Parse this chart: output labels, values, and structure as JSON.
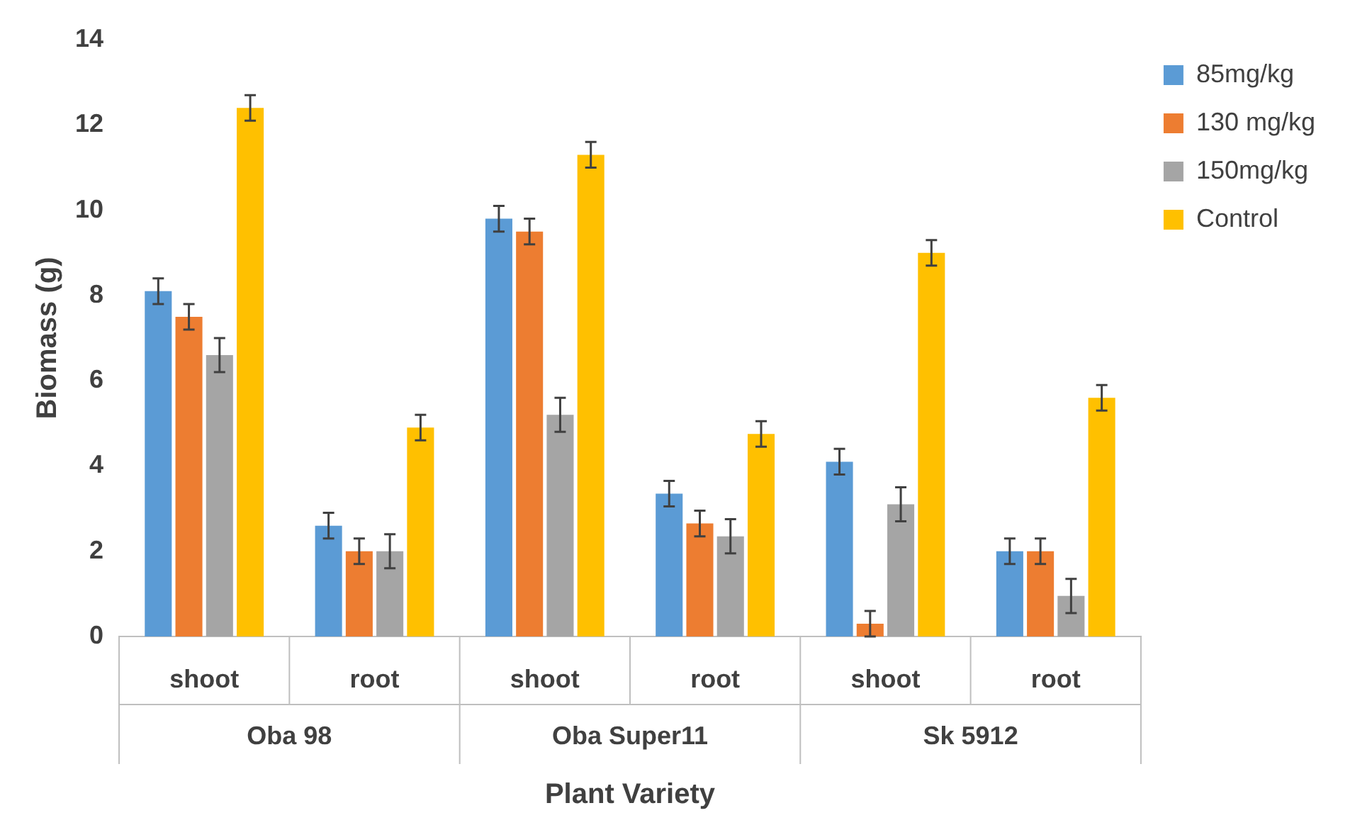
{
  "chart_data": {
    "type": "bar",
    "xlabel": "Plant Variety",
    "ylabel": "Biomass (g)",
    "categories": [
      "shoot",
      "root",
      "shoot",
      "root",
      "shoot",
      "root"
    ],
    "annotations": [
      "Oba 98",
      "Oba Super11",
      "Sk 5912"
    ],
    "series": [
      {
        "name": "85mg/kg",
        "color": "#5b9bd5",
        "values": [
          8.1,
          2.6,
          9.8,
          3.35,
          4.1,
          2.0
        ],
        "errors": [
          0.3,
          0.3,
          0.3,
          0.3,
          0.3,
          0.3
        ]
      },
      {
        "name": "130 mg/kg",
        "color": "#ed7d31",
        "values": [
          7.5,
          2.0,
          9.5,
          2.65,
          0.3,
          2.0
        ],
        "errors": [
          0.3,
          0.3,
          0.3,
          0.3,
          0.3,
          0.3
        ]
      },
      {
        "name": "150mg/kg",
        "color": "#a5a5a5",
        "values": [
          6.6,
          2.0,
          5.2,
          2.35,
          3.1,
          0.95
        ],
        "errors": [
          0.4,
          0.4,
          0.4,
          0.4,
          0.4,
          0.4
        ]
      },
      {
        "name": "Control",
        "color": "#ffc000",
        "values": [
          12.4,
          4.9,
          11.3,
          4.75,
          9.0,
          5.6
        ],
        "errors": [
          0.3,
          0.3,
          0.3,
          0.3,
          0.3,
          0.3
        ]
      }
    ],
    "ylim": [
      0,
      14
    ],
    "yticks": [
      0,
      2,
      4,
      6,
      8,
      10,
      12,
      14
    ],
    "grid": false,
    "legend": "top right"
  }
}
